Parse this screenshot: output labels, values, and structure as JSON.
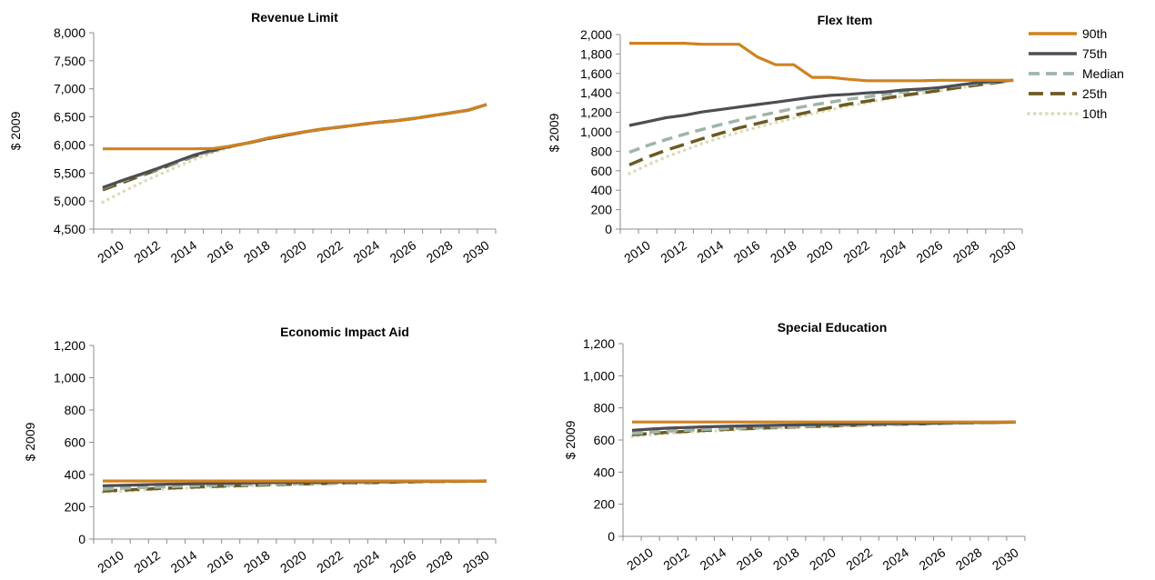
{
  "legend": {
    "entries": [
      {
        "name": "90th",
        "color": "#d0821f",
        "dash": "solid"
      },
      {
        "name": "75th",
        "color": "#4d4d53",
        "dash": "solid"
      },
      {
        "name": "Median",
        "color": "#9fb5a8",
        "dash": "dash"
      },
      {
        "name": "25th",
        "color": "#6b5a22",
        "dash": "longdash"
      },
      {
        "name": "10th",
        "color": "#dcdcb8",
        "dash": "dot"
      }
    ]
  },
  "chart_data": [
    {
      "type": "line",
      "title": "Revenue Limit",
      "ylabel": "$ 2009",
      "xlabel": "",
      "ylim": [
        4500,
        8000
      ],
      "yticks": [
        4500,
        5000,
        5500,
        6000,
        6500,
        7000,
        7500,
        8000
      ],
      "ytick_labels": [
        "4,500",
        "5,000",
        "5,500",
        "6,000",
        "6,500",
        "7,000",
        "7,500",
        "8,000"
      ],
      "x": [
        2009,
        2010,
        2011,
        2012,
        2013,
        2014,
        2015,
        2016,
        2017,
        2018,
        2019,
        2020,
        2021,
        2022,
        2023,
        2024,
        2025,
        2026,
        2027,
        2028,
        2029,
        2030
      ],
      "xtick_labels": [
        "2010",
        "2012",
        "2014",
        "2016",
        "2018",
        "2020",
        "2022",
        "2024",
        "2026",
        "2028",
        "2030"
      ],
      "grid": false,
      "series": [
        {
          "name": "90th",
          "values": [
            5930,
            5930,
            5930,
            5930,
            5930,
            5930,
            5935,
            5980,
            6040,
            6120,
            6180,
            6230,
            6280,
            6320,
            6360,
            6400,
            6430,
            6470,
            6520,
            6570,
            6620,
            6720
          ]
        },
        {
          "name": "75th",
          "values": [
            5240,
            5360,
            5470,
            5580,
            5700,
            5820,
            5910,
            5980,
            6040,
            6110,
            6170,
            6230,
            6280,
            6320,
            6360,
            6400,
            6430,
            6470,
            6520,
            6570,
            6620,
            6720
          ]
        },
        {
          "name": "Median",
          "values": [
            5230,
            5350,
            5460,
            5570,
            5690,
            5810,
            5900,
            5975,
            6040,
            6110,
            6170,
            6230,
            6280,
            6320,
            6360,
            6400,
            6430,
            6470,
            6520,
            6570,
            6620,
            6720
          ]
        },
        {
          "name": "25th",
          "values": [
            5200,
            5320,
            5440,
            5560,
            5680,
            5800,
            5895,
            5975,
            6040,
            6110,
            6170,
            6230,
            6280,
            6320,
            6360,
            6400,
            6430,
            6470,
            6520,
            6570,
            6620,
            6720
          ]
        },
        {
          "name": "10th",
          "values": [
            4980,
            5150,
            5310,
            5460,
            5600,
            5740,
            5860,
            5960,
            6030,
            6110,
            6170,
            6230,
            6280,
            6320,
            6360,
            6400,
            6430,
            6470,
            6520,
            6570,
            6620,
            6720
          ]
        }
      ]
    },
    {
      "type": "line",
      "title": "Flex Item",
      "ylabel": "$ 2009",
      "xlabel": "",
      "ylim": [
        0,
        2000
      ],
      "yticks": [
        0,
        200,
        400,
        600,
        800,
        1000,
        1200,
        1400,
        1600,
        1800,
        2000
      ],
      "ytick_labels": [
        "0",
        "200",
        "400",
        "600",
        "800",
        "1,000",
        "1,200",
        "1,400",
        "1,600",
        "1,800",
        "2,000"
      ],
      "x": [
        2009,
        2010,
        2011,
        2012,
        2013,
        2014,
        2015,
        2016,
        2017,
        2018,
        2019,
        2020,
        2021,
        2022,
        2023,
        2024,
        2025,
        2026,
        2027,
        2028,
        2029,
        2030
      ],
      "xtick_labels": [
        "2010",
        "2012",
        "2014",
        "2016",
        "2018",
        "2020",
        "2022",
        "2024",
        "2026",
        "2028",
        "2030"
      ],
      "grid": false,
      "series": [
        {
          "name": "90th",
          "values": [
            1910,
            1910,
            1910,
            1910,
            1900,
            1900,
            1900,
            1770,
            1690,
            1690,
            1560,
            1560,
            1540,
            1525,
            1525,
            1525,
            1525,
            1530,
            1530,
            1530,
            1530,
            1530
          ]
        },
        {
          "name": "75th",
          "values": [
            1065,
            1105,
            1145,
            1170,
            1205,
            1230,
            1255,
            1280,
            1305,
            1330,
            1355,
            1375,
            1385,
            1400,
            1410,
            1430,
            1440,
            1455,
            1480,
            1505,
            1520,
            1530
          ]
        },
        {
          "name": "Median",
          "values": [
            790,
            860,
            920,
            975,
            1025,
            1075,
            1120,
            1160,
            1200,
            1240,
            1275,
            1305,
            1335,
            1360,
            1385,
            1410,
            1430,
            1455,
            1475,
            1495,
            1515,
            1530
          ]
        },
        {
          "name": "25th",
          "values": [
            660,
            740,
            810,
            870,
            930,
            985,
            1040,
            1085,
            1130,
            1170,
            1210,
            1250,
            1285,
            1315,
            1345,
            1375,
            1400,
            1425,
            1455,
            1480,
            1505,
            1530
          ]
        },
        {
          "name": "10th",
          "values": [
            570,
            660,
            740,
            810,
            880,
            940,
            995,
            1045,
            1095,
            1140,
            1185,
            1225,
            1265,
            1300,
            1335,
            1365,
            1395,
            1420,
            1450,
            1475,
            1505,
            1530
          ]
        }
      ]
    },
    {
      "type": "line",
      "title": "Economic Impact Aid",
      "ylabel": "$ 2009",
      "xlabel": "",
      "ylim": [
        0,
        1200
      ],
      "yticks": [
        0,
        200,
        400,
        600,
        800,
        1000,
        1200
      ],
      "ytick_labels": [
        "0",
        "200",
        "400",
        "600",
        "800",
        "1,000",
        "1,200"
      ],
      "x": [
        2009,
        2010,
        2011,
        2012,
        2013,
        2014,
        2015,
        2016,
        2017,
        2018,
        2019,
        2020,
        2021,
        2022,
        2023,
        2024,
        2025,
        2026,
        2027,
        2028,
        2029,
        2030
      ],
      "xtick_labels": [
        "2010",
        "2012",
        "2014",
        "2016",
        "2018",
        "2020",
        "2022",
        "2024",
        "2026",
        "2028",
        "2030"
      ],
      "grid": false,
      "series": [
        {
          "name": "90th",
          "values": [
            360,
            360,
            360,
            360,
            360,
            360,
            360,
            360,
            360,
            360,
            360,
            360,
            360,
            360,
            360,
            360,
            360,
            360,
            360,
            360,
            360,
            360
          ]
        },
        {
          "name": "75th",
          "values": [
            330,
            333,
            336,
            339,
            341,
            343,
            345,
            347,
            348,
            350,
            351,
            352,
            353,
            354,
            355,
            356,
            357,
            358,
            358,
            359,
            359,
            360
          ]
        },
        {
          "name": "Median",
          "values": [
            310,
            315,
            319,
            323,
            327,
            330,
            333,
            336,
            338,
            341,
            343,
            345,
            347,
            349,
            351,
            353,
            354,
            356,
            357,
            358,
            359,
            360
          ]
        },
        {
          "name": "25th",
          "values": [
            298,
            303,
            308,
            313,
            318,
            322,
            326,
            330,
            333,
            336,
            339,
            342,
            344,
            347,
            349,
            351,
            353,
            355,
            356,
            358,
            359,
            360
          ]
        },
        {
          "name": "10th",
          "values": [
            290,
            296,
            302,
            308,
            313,
            318,
            322,
            326,
            330,
            334,
            337,
            340,
            343,
            346,
            348,
            350,
            352,
            354,
            356,
            358,
            359,
            360
          ]
        }
      ]
    },
    {
      "type": "line",
      "title": "Special Education",
      "ylabel": "$ 2009",
      "xlabel": "",
      "ylim": [
        0,
        1200
      ],
      "yticks": [
        0,
        200,
        400,
        600,
        800,
        1000,
        1200
      ],
      "ytick_labels": [
        "0",
        "200",
        "400",
        "600",
        "800",
        "1,000",
        "1,200"
      ],
      "x": [
        2009,
        2010,
        2011,
        2012,
        2013,
        2014,
        2015,
        2016,
        2017,
        2018,
        2019,
        2020,
        2021,
        2022,
        2023,
        2024,
        2025,
        2026,
        2027,
        2028,
        2029,
        2030
      ],
      "xtick_labels": [
        "2010",
        "2012",
        "2014",
        "2016",
        "2018",
        "2020",
        "2022",
        "2024",
        "2026",
        "2028",
        "2030"
      ],
      "grid": false,
      "series": [
        {
          "name": "90th",
          "values": [
            712,
            712,
            712,
            712,
            712,
            712,
            712,
            712,
            712,
            712,
            712,
            712,
            712,
            712,
            712,
            712,
            712,
            712,
            712,
            712,
            712,
            712
          ]
        },
        {
          "name": "75th",
          "values": [
            660,
            668,
            674,
            678,
            682,
            685,
            688,
            690,
            692,
            694,
            696,
            698,
            699,
            701,
            702,
            704,
            705,
            707,
            708,
            709,
            710,
            712
          ]
        },
        {
          "name": "Median",
          "values": [
            640,
            648,
            655,
            661,
            666,
            670,
            674,
            678,
            681,
            685,
            688,
            691,
            693,
            696,
            698,
            700,
            702,
            704,
            706,
            708,
            710,
            712
          ]
        },
        {
          "name": "25th",
          "values": [
            632,
            641,
            648,
            654,
            660,
            665,
            670,
            674,
            678,
            682,
            685,
            688,
            691,
            694,
            697,
            699,
            701,
            704,
            706,
            708,
            710,
            712
          ]
        },
        {
          "name": "10th",
          "values": [
            622,
            632,
            640,
            647,
            654,
            660,
            665,
            670,
            674,
            678,
            682,
            686,
            689,
            692,
            695,
            698,
            700,
            703,
            705,
            708,
            710,
            712
          ]
        }
      ]
    }
  ]
}
